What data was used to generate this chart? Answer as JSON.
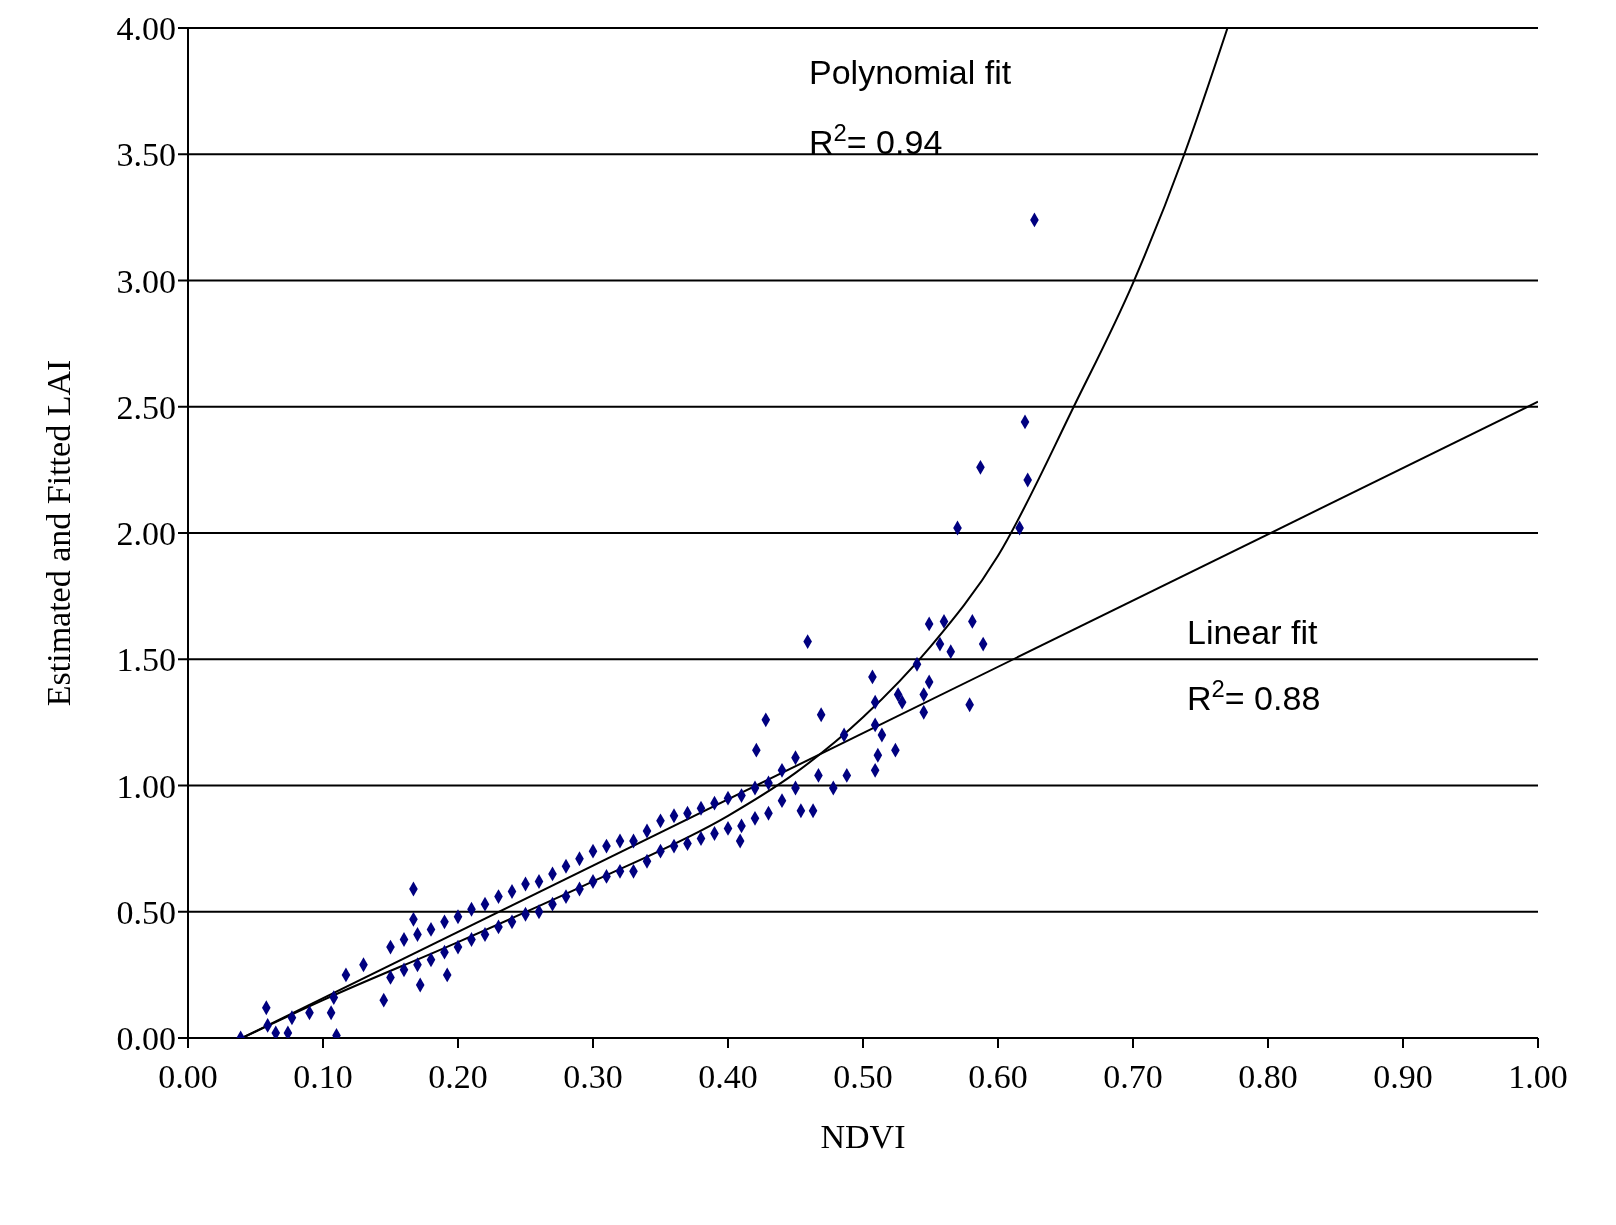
{
  "chart_data": {
    "type": "scatter",
    "xlabel": "NDVI",
    "ylabel": "Estimated and Fitted LAI",
    "xlim": [
      0,
      1
    ],
    "ylim": [
      0,
      4
    ],
    "xticks": [
      {
        "value": 0,
        "label": "0.00"
      },
      {
        "value": 0.1,
        "label": "0.10"
      },
      {
        "value": 0.2,
        "label": "0.20"
      },
      {
        "value": 0.3,
        "label": "0.30"
      },
      {
        "value": 0.4,
        "label": "0.40"
      },
      {
        "value": 0.5,
        "label": "0.50"
      },
      {
        "value": 0.6,
        "label": "0.60"
      },
      {
        "value": 0.7,
        "label": "0.70"
      },
      {
        "value": 0.8,
        "label": "0.80"
      },
      {
        "value": 0.9,
        "label": "0.90"
      },
      {
        "value": 1,
        "label": "1.00"
      }
    ],
    "yticks": [
      {
        "value": 0,
        "label": "0.00"
      },
      {
        "value": 0.5,
        "label": "0.50"
      },
      {
        "value": 1,
        "label": "1.00"
      },
      {
        "value": 1.5,
        "label": "1.50"
      },
      {
        "value": 2,
        "label": "2.00"
      },
      {
        "value": 2.5,
        "label": "2.50"
      },
      {
        "value": 3,
        "label": "3.00"
      },
      {
        "value": 3.5,
        "label": "3.50"
      },
      {
        "value": 4,
        "label": "4.00"
      }
    ],
    "grid": "y",
    "legend": false,
    "series": [
      {
        "color": "#000080",
        "marker": "diamond",
        "x": [
          0.627,
          0.62,
          0.587,
          0.622,
          0.57,
          0.616,
          0.581,
          0.56,
          0.549,
          0.459,
          0.589,
          0.557,
          0.565,
          0.54,
          0.507,
          0.549,
          0.526,
          0.545,
          0.529,
          0.509,
          0.579,
          0.545,
          0.428,
          0.469,
          0.486,
          0.509,
          0.514,
          0.524,
          0.421,
          0.511,
          0.509,
          0.488,
          0.467,
          0.478,
          0.463,
          0.454,
          0.409,
          0.167,
          0.167,
          0.192,
          0.145,
          0.11,
          0.058,
          0.039,
          0.077,
          0.09,
          0.117,
          0.13,
          0.172,
          0.065,
          0.074,
          0.059,
          0.108,
          0.106,
          0.15,
          0.15,
          0.16,
          0.16,
          0.17,
          0.17,
          0.18,
          0.18,
          0.19,
          0.19,
          0.2,
          0.2,
          0.21,
          0.21,
          0.22,
          0.22,
          0.23,
          0.23,
          0.24,
          0.24,
          0.25,
          0.25,
          0.26,
          0.26,
          0.27,
          0.27,
          0.28,
          0.28,
          0.29,
          0.29,
          0.3,
          0.3,
          0.31,
          0.31,
          0.32,
          0.32,
          0.33,
          0.33,
          0.34,
          0.34,
          0.35,
          0.35,
          0.36,
          0.36,
          0.37,
          0.37,
          0.38,
          0.38,
          0.39,
          0.39,
          0.4,
          0.4,
          0.41,
          0.41,
          0.42,
          0.42,
          0.43,
          0.43,
          0.44,
          0.44,
          0.45,
          0.45
        ],
        "values": [
          3.24,
          2.44,
          2.26,
          2.21,
          2.02,
          2.02,
          1.65,
          1.65,
          1.64,
          1.57,
          1.56,
          1.56,
          1.53,
          1.48,
          1.43,
          1.41,
          1.36,
          1.36,
          1.33,
          1.33,
          1.32,
          1.29,
          1.26,
          1.28,
          1.2,
          1.24,
          1.2,
          1.14,
          1.14,
          1.12,
          1.06,
          1.04,
          1.04,
          0.99,
          0.9,
          0.9,
          0.78,
          0.59,
          0.47,
          0.25,
          0.15,
          0.01,
          0.12,
          0,
          0.08,
          0.1,
          0.25,
          0.29,
          0.21,
          0.02,
          0.02,
          0.05,
          0.16,
          0.1,
          0.36,
          0.24,
          0.39,
          0.27,
          0.41,
          0.29,
          0.43,
          0.31,
          0.46,
          0.34,
          0.48,
          0.36,
          0.51,
          0.39,
          0.53,
          0.41,
          0.56,
          0.44,
          0.58,
          0.46,
          0.61,
          0.49,
          0.62,
          0.5,
          0.65,
          0.53,
          0.68,
          0.56,
          0.71,
          0.59,
          0.74,
          0.62,
          0.76,
          0.64,
          0.78,
          0.66,
          0.78,
          0.66,
          0.82,
          0.7,
          0.86,
          0.74,
          0.88,
          0.76,
          0.89,
          0.77,
          0.91,
          0.79,
          0.93,
          0.81,
          0.95,
          0.83,
          0.96,
          0.84,
          0.99,
          0.87,
          1.01,
          0.89,
          1.06,
          0.94,
          1.11,
          0.99
        ]
      },
      {
        "type": "line",
        "color": "#000000",
        "marker": "none",
        "line_style": "solid",
        "x": [
          0.04,
          1.0
        ],
        "values": [
          0.0,
          2.52
        ]
      },
      {
        "type": "line",
        "color": "#000000",
        "marker": "none",
        "line_style": "solid",
        "x": [
          0.04,
          0.1,
          0.2,
          0.3,
          0.4,
          0.45,
          0.5,
          0.55,
          0.6,
          0.657,
          0.7,
          0.738,
          0.77
        ],
        "values": [
          0.0,
          0.15,
          0.38,
          0.62,
          0.88,
          1.05,
          1.27,
          1.55,
          1.91,
          2.51,
          2.99,
          3.5,
          4.0
        ]
      }
    ],
    "annotations": [
      "Polynomial fit",
      "R$^{2}$= 0.94",
      "Linear fit",
      "R$^{2}$= 0.88"
    ]
  }
}
